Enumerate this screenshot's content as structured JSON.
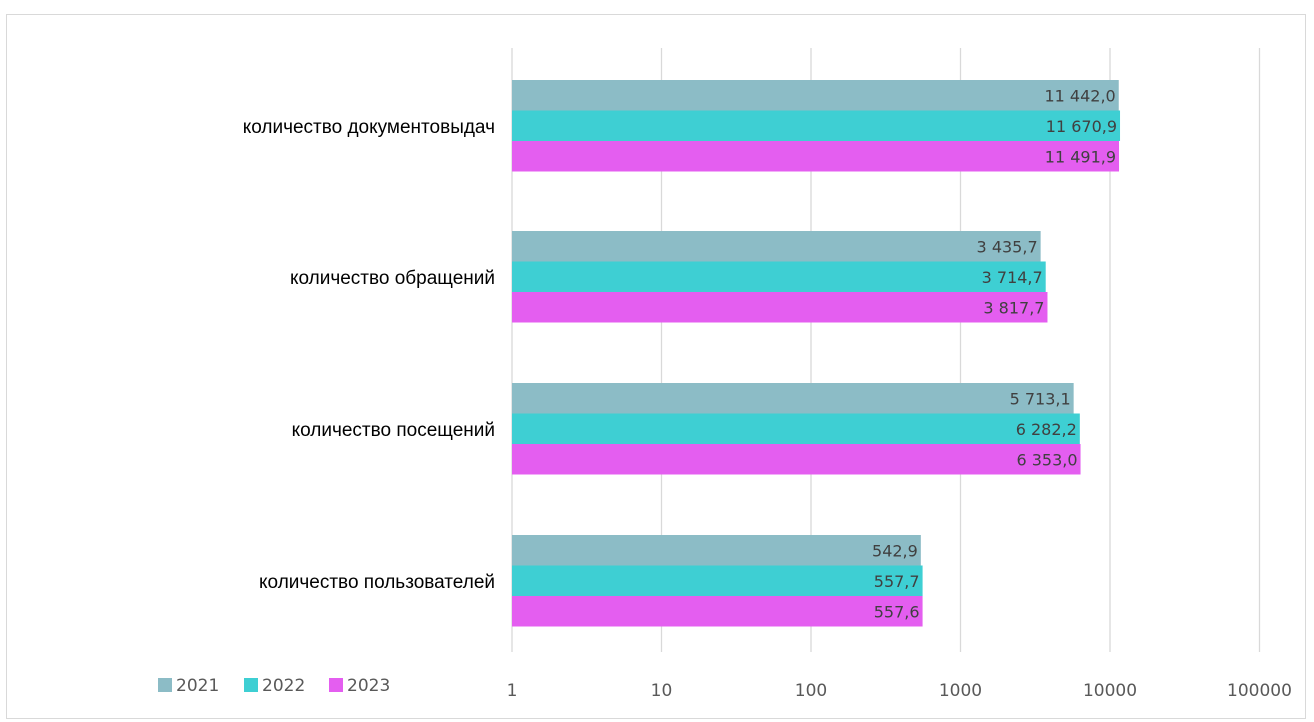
{
  "chart_data": {
    "type": "bar",
    "orientation": "horizontal",
    "x_scale": "log",
    "xlim": [
      1,
      100000
    ],
    "x_ticks": [
      "1",
      "10",
      "100",
      "1000",
      "10000",
      "100000"
    ],
    "grid": "vertical",
    "legend_position": "bottom-left",
    "categories": [
      "количество документовыдач",
      "количество обращений",
      "количество посещений",
      "количество пользователей"
    ],
    "series": [
      {
        "name": "2021",
        "color": "#8cbcc6",
        "values": [
          11442.0,
          3435.7,
          5713.1,
          542.9
        ],
        "labels": [
          "11 442,0",
          "3 435,7",
          "5 713,1",
          "542,9"
        ]
      },
      {
        "name": "2022",
        "color": "#3ecfd3",
        "values": [
          11670.9,
          3714.7,
          6282.2,
          557.7
        ],
        "labels": [
          "11 670,9",
          "3 714,7",
          "6 282,2",
          "557,7"
        ]
      },
      {
        "name": "2023",
        "color": "#e45ef0",
        "values": [
          11491.9,
          3817.7,
          6353.0,
          557.6
        ],
        "labels": [
          "11 491,9",
          "3 817,7",
          "6 353,0",
          "557,6"
        ]
      }
    ]
  }
}
